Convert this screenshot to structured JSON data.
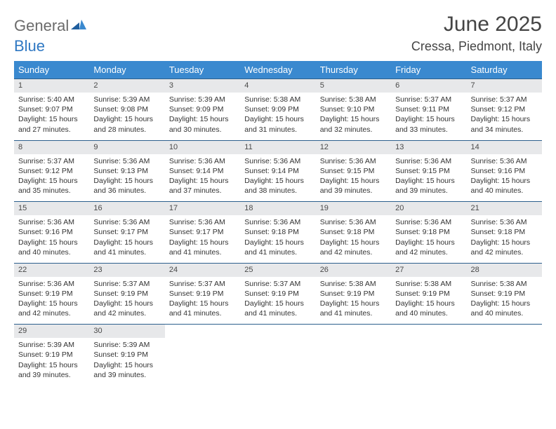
{
  "logo": {
    "general": "General",
    "blue": "Blue"
  },
  "title": "June 2025",
  "location": "Cressa, Piedmont, Italy",
  "colors": {
    "header_bg": "#3a89cf",
    "header_text": "#ffffff",
    "daynum_bg": "#e7e8ea",
    "row_border": "#2c5f8d",
    "logo_blue": "#2f78c3",
    "logo_gray": "#6b6b6b"
  },
  "weekdays": [
    "Sunday",
    "Monday",
    "Tuesday",
    "Wednesday",
    "Thursday",
    "Friday",
    "Saturday"
  ],
  "weeks": [
    [
      {
        "n": "1",
        "sr": "Sunrise: 5:40 AM",
        "ss": "Sunset: 9:07 PM",
        "dl": "Daylight: 15 hours and 27 minutes."
      },
      {
        "n": "2",
        "sr": "Sunrise: 5:39 AM",
        "ss": "Sunset: 9:08 PM",
        "dl": "Daylight: 15 hours and 28 minutes."
      },
      {
        "n": "3",
        "sr": "Sunrise: 5:39 AM",
        "ss": "Sunset: 9:09 PM",
        "dl": "Daylight: 15 hours and 30 minutes."
      },
      {
        "n": "4",
        "sr": "Sunrise: 5:38 AM",
        "ss": "Sunset: 9:09 PM",
        "dl": "Daylight: 15 hours and 31 minutes."
      },
      {
        "n": "5",
        "sr": "Sunrise: 5:38 AM",
        "ss": "Sunset: 9:10 PM",
        "dl": "Daylight: 15 hours and 32 minutes."
      },
      {
        "n": "6",
        "sr": "Sunrise: 5:37 AM",
        "ss": "Sunset: 9:11 PM",
        "dl": "Daylight: 15 hours and 33 minutes."
      },
      {
        "n": "7",
        "sr": "Sunrise: 5:37 AM",
        "ss": "Sunset: 9:12 PM",
        "dl": "Daylight: 15 hours and 34 minutes."
      }
    ],
    [
      {
        "n": "8",
        "sr": "Sunrise: 5:37 AM",
        "ss": "Sunset: 9:12 PM",
        "dl": "Daylight: 15 hours and 35 minutes."
      },
      {
        "n": "9",
        "sr": "Sunrise: 5:36 AM",
        "ss": "Sunset: 9:13 PM",
        "dl": "Daylight: 15 hours and 36 minutes."
      },
      {
        "n": "10",
        "sr": "Sunrise: 5:36 AM",
        "ss": "Sunset: 9:14 PM",
        "dl": "Daylight: 15 hours and 37 minutes."
      },
      {
        "n": "11",
        "sr": "Sunrise: 5:36 AM",
        "ss": "Sunset: 9:14 PM",
        "dl": "Daylight: 15 hours and 38 minutes."
      },
      {
        "n": "12",
        "sr": "Sunrise: 5:36 AM",
        "ss": "Sunset: 9:15 PM",
        "dl": "Daylight: 15 hours and 39 minutes."
      },
      {
        "n": "13",
        "sr": "Sunrise: 5:36 AM",
        "ss": "Sunset: 9:15 PM",
        "dl": "Daylight: 15 hours and 39 minutes."
      },
      {
        "n": "14",
        "sr": "Sunrise: 5:36 AM",
        "ss": "Sunset: 9:16 PM",
        "dl": "Daylight: 15 hours and 40 minutes."
      }
    ],
    [
      {
        "n": "15",
        "sr": "Sunrise: 5:36 AM",
        "ss": "Sunset: 9:16 PM",
        "dl": "Daylight: 15 hours and 40 minutes."
      },
      {
        "n": "16",
        "sr": "Sunrise: 5:36 AM",
        "ss": "Sunset: 9:17 PM",
        "dl": "Daylight: 15 hours and 41 minutes."
      },
      {
        "n": "17",
        "sr": "Sunrise: 5:36 AM",
        "ss": "Sunset: 9:17 PM",
        "dl": "Daylight: 15 hours and 41 minutes."
      },
      {
        "n": "18",
        "sr": "Sunrise: 5:36 AM",
        "ss": "Sunset: 9:18 PM",
        "dl": "Daylight: 15 hours and 41 minutes."
      },
      {
        "n": "19",
        "sr": "Sunrise: 5:36 AM",
        "ss": "Sunset: 9:18 PM",
        "dl": "Daylight: 15 hours and 42 minutes."
      },
      {
        "n": "20",
        "sr": "Sunrise: 5:36 AM",
        "ss": "Sunset: 9:18 PM",
        "dl": "Daylight: 15 hours and 42 minutes."
      },
      {
        "n": "21",
        "sr": "Sunrise: 5:36 AM",
        "ss": "Sunset: 9:18 PM",
        "dl": "Daylight: 15 hours and 42 minutes."
      }
    ],
    [
      {
        "n": "22",
        "sr": "Sunrise: 5:36 AM",
        "ss": "Sunset: 9:19 PM",
        "dl": "Daylight: 15 hours and 42 minutes."
      },
      {
        "n": "23",
        "sr": "Sunrise: 5:37 AM",
        "ss": "Sunset: 9:19 PM",
        "dl": "Daylight: 15 hours and 42 minutes."
      },
      {
        "n": "24",
        "sr": "Sunrise: 5:37 AM",
        "ss": "Sunset: 9:19 PM",
        "dl": "Daylight: 15 hours and 41 minutes."
      },
      {
        "n": "25",
        "sr": "Sunrise: 5:37 AM",
        "ss": "Sunset: 9:19 PM",
        "dl": "Daylight: 15 hours and 41 minutes."
      },
      {
        "n": "26",
        "sr": "Sunrise: 5:38 AM",
        "ss": "Sunset: 9:19 PM",
        "dl": "Daylight: 15 hours and 41 minutes."
      },
      {
        "n": "27",
        "sr": "Sunrise: 5:38 AM",
        "ss": "Sunset: 9:19 PM",
        "dl": "Daylight: 15 hours and 40 minutes."
      },
      {
        "n": "28",
        "sr": "Sunrise: 5:38 AM",
        "ss": "Sunset: 9:19 PM",
        "dl": "Daylight: 15 hours and 40 minutes."
      }
    ],
    [
      {
        "n": "29",
        "sr": "Sunrise: 5:39 AM",
        "ss": "Sunset: 9:19 PM",
        "dl": "Daylight: 15 hours and 39 minutes."
      },
      {
        "n": "30",
        "sr": "Sunrise: 5:39 AM",
        "ss": "Sunset: 9:19 PM",
        "dl": "Daylight: 15 hours and 39 minutes."
      },
      null,
      null,
      null,
      null,
      null
    ]
  ]
}
